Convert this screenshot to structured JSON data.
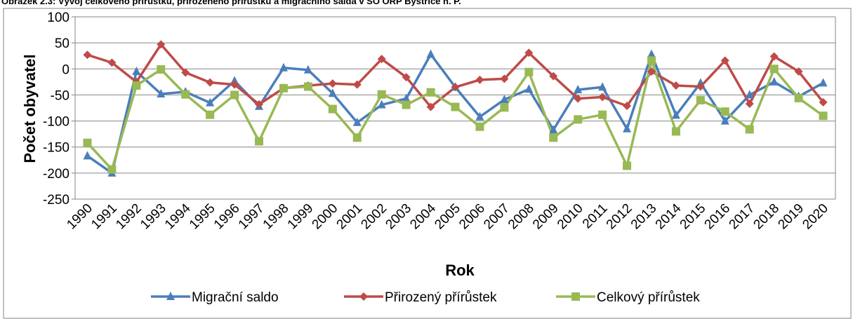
{
  "chart_data": {
    "type": "line",
    "title": "Obrázek 2.3: Vývoj celkového přírůstku, přirozeného přírůstku a migračního salda v SO ORP Bystřice n. P.",
    "x_label": "Rok",
    "y_label": "Počet obyvatel",
    "categories": [
      "1990",
      "1991",
      "1992",
      "1993",
      "1994",
      "1995",
      "1996",
      "1997",
      "1998",
      "1999",
      "2000",
      "2001",
      "2002",
      "2003",
      "2004",
      "2005",
      "2006",
      "2007",
      "2008",
      "2009",
      "2010",
      "2011",
      "2012",
      "2013",
      "2014",
      "2015",
      "2016",
      "2017",
      "2018",
      "2019",
      "2020"
    ],
    "series": [
      {
        "name": "Migrační saldo",
        "color": "#4a7ebb",
        "marker": "triangle",
        "values": [
          -167,
          -200,
          -5,
          -48,
          -44,
          -65,
          -23,
          -72,
          2,
          -2,
          -47,
          -103,
          -69,
          -57,
          28,
          -35,
          -92,
          -59,
          -39,
          -117,
          -40,
          -35,
          -115,
          28,
          -89,
          -27,
          -100,
          -50,
          -25,
          -53,
          -27
        ]
      },
      {
        "name": "Přirozený přírůstek",
        "color": "#be4b48",
        "marker": "diamond",
        "values": [
          27,
          12,
          -25,
          47,
          -7,
          -26,
          -30,
          -68,
          -37,
          -32,
          -28,
          -30,
          19,
          -16,
          -73,
          -35,
          -21,
          -19,
          31,
          -14,
          -57,
          -54,
          -71,
          -5,
          -32,
          -34,
          16,
          -67,
          24,
          -5,
          -64
        ]
      },
      {
        "name": "Celkový přírůstek",
        "color": "#98b954",
        "marker": "square",
        "values": [
          -142,
          -193,
          -32,
          -1,
          -49,
          -88,
          -50,
          -139,
          -37,
          -34,
          -77,
          -132,
          -49,
          -69,
          -45,
          -73,
          -111,
          -74,
          -6,
          -132,
          -97,
          -88,
          -186,
          16,
          -120,
          -60,
          -82,
          -116,
          0,
          -56,
          -90
        ]
      }
    ],
    "ylim": [
      -250,
      100
    ],
    "yticks": [
      -250,
      -200,
      -150,
      -100,
      -50,
      0,
      50,
      100
    ],
    "grid": true,
    "legend": "bottom"
  }
}
